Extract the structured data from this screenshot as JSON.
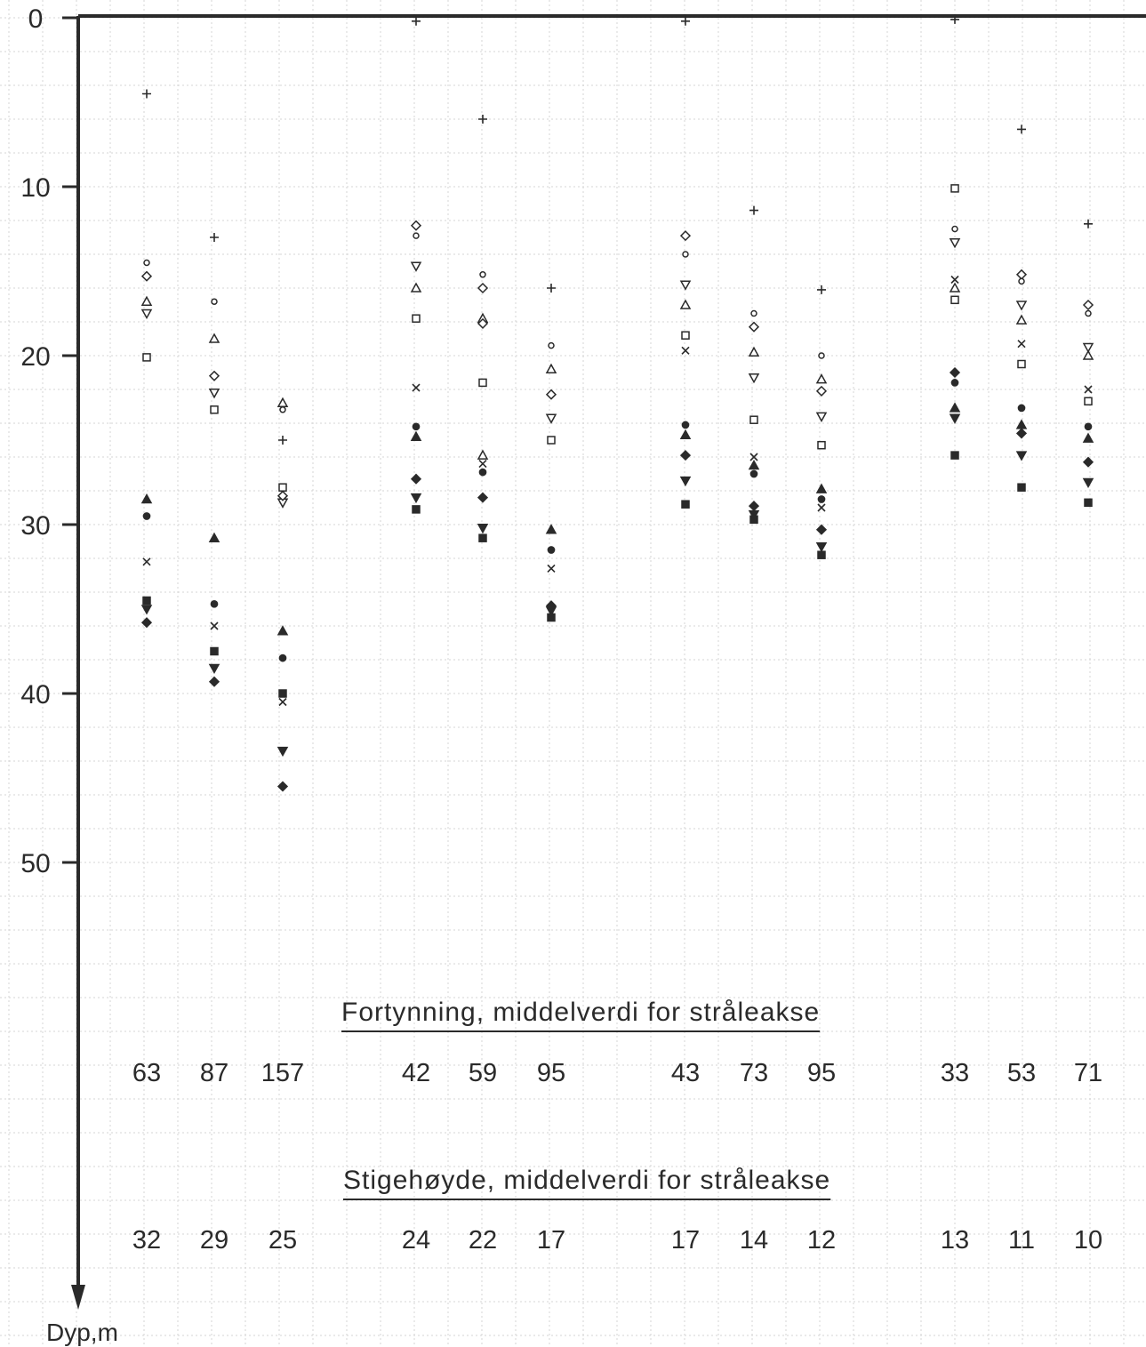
{
  "chart_data": {
    "type": "scatter",
    "ylabel": "Dyp,m",
    "ylim": [
      0,
      61
    ],
    "y_reversed": true,
    "y_ticks": [
      "0",
      "10",
      "20",
      "30",
      "40",
      "50"
    ],
    "grid": true,
    "colors": {
      "ink": "#2a2a2a",
      "grid": "#d4d4d4"
    },
    "series_markers": [
      "+",
      "o",
      "diamond",
      "triangle-up",
      "triangle-down",
      "square",
      "x",
      "filled-circle",
      "filled-triangle-up",
      "filled-diamond",
      "filled-triangle-down",
      "filled-square"
    ],
    "columns": [
      {
        "group": 1,
        "points": [
          [
            "+",
            4.5
          ],
          [
            "o",
            14.5
          ],
          [
            "diamond",
            15.3
          ],
          [
            "triangle-up",
            16.8
          ],
          [
            "triangle-down",
            17.5
          ],
          [
            "square",
            20.1
          ],
          [
            "filled-triangle-up",
            28.5
          ],
          [
            "filled-circle",
            29.5
          ],
          [
            "x",
            32.2
          ],
          [
            "filled-square",
            34.5
          ],
          [
            "filled-triangle-down",
            35.0
          ],
          [
            "filled-diamond",
            35.8
          ]
        ]
      },
      {
        "group": 1,
        "points": [
          [
            "+",
            13.0
          ],
          [
            "o",
            16.8
          ],
          [
            "triangle-up",
            19.0
          ],
          [
            "diamond",
            21.2
          ],
          [
            "triangle-down",
            22.2
          ],
          [
            "square",
            23.2
          ],
          [
            "filled-triangle-up",
            30.8
          ],
          [
            "filled-circle",
            34.7
          ],
          [
            "x",
            36.0
          ],
          [
            "filled-square",
            37.5
          ],
          [
            "filled-triangle-down",
            38.5
          ],
          [
            "filled-diamond",
            39.3
          ]
        ]
      },
      {
        "group": 1,
        "points": [
          [
            "triangle-up",
            22.8
          ],
          [
            "o",
            23.2
          ],
          [
            "+",
            25.0
          ],
          [
            "square",
            27.8
          ],
          [
            "triangle-down",
            28.7
          ],
          [
            "diamond",
            28.3
          ],
          [
            "filled-triangle-up",
            36.3
          ],
          [
            "filled-circle",
            37.9
          ],
          [
            "filled-square",
            40.0
          ],
          [
            "x",
            40.5
          ],
          [
            "filled-triangle-down",
            43.4
          ],
          [
            "filled-diamond",
            45.5
          ]
        ]
      },
      {
        "group": 2,
        "points": [
          [
            "+",
            0.2
          ],
          [
            "diamond",
            12.3
          ],
          [
            "o",
            12.9
          ],
          [
            "triangle-down",
            14.7
          ],
          [
            "triangle-up",
            16.0
          ],
          [
            "square",
            17.8
          ],
          [
            "x",
            21.9
          ],
          [
            "filled-circle",
            24.2
          ],
          [
            "filled-triangle-up",
            24.8
          ],
          [
            "filled-diamond",
            27.3
          ],
          [
            "filled-triangle-down",
            28.4
          ],
          [
            "filled-square",
            29.1
          ]
        ]
      },
      {
        "group": 2,
        "points": [
          [
            "+",
            6.0
          ],
          [
            "o",
            15.2
          ],
          [
            "diamond",
            16.0
          ],
          [
            "triangle-up",
            17.8
          ],
          [
            "diamond",
            18.1
          ],
          [
            "square",
            21.6
          ],
          [
            "triangle-up",
            25.9
          ],
          [
            "x",
            26.4
          ],
          [
            "filled-circle",
            26.9
          ],
          [
            "filled-diamond",
            28.4
          ],
          [
            "filled-triangle-down",
            30.2
          ],
          [
            "filled-square",
            30.8
          ]
        ]
      },
      {
        "group": 2,
        "points": [
          [
            "+",
            16.0
          ],
          [
            "o",
            19.4
          ],
          [
            "triangle-up",
            20.8
          ],
          [
            "diamond",
            22.3
          ],
          [
            "triangle-down",
            23.7
          ],
          [
            "square",
            25.0
          ],
          [
            "filled-triangle-up",
            30.3
          ],
          [
            "filled-circle",
            31.5
          ],
          [
            "x",
            32.6
          ],
          [
            "filled-diamond",
            34.8
          ],
          [
            "filled-triangle-down",
            35.1
          ],
          [
            "filled-square",
            35.5
          ]
        ]
      },
      {
        "group": 3,
        "points": [
          [
            "+",
            0.2
          ],
          [
            "diamond",
            12.9
          ],
          [
            "o",
            14.0
          ],
          [
            "triangle-down",
            15.8
          ],
          [
            "triangle-up",
            17.0
          ],
          [
            "square",
            18.8
          ],
          [
            "x",
            19.7
          ],
          [
            "filled-circle",
            24.1
          ],
          [
            "filled-triangle-up",
            24.7
          ],
          [
            "filled-diamond",
            25.9
          ],
          [
            "filled-triangle-down",
            27.4
          ],
          [
            "filled-square",
            28.8
          ]
        ]
      },
      {
        "group": 3,
        "points": [
          [
            "+",
            11.4
          ],
          [
            "o",
            17.5
          ],
          [
            "diamond",
            18.3
          ],
          [
            "triangle-up",
            19.8
          ],
          [
            "triangle-down",
            21.3
          ],
          [
            "square",
            23.8
          ],
          [
            "x",
            26.0
          ],
          [
            "filled-triangle-up",
            26.5
          ],
          [
            "filled-circle",
            27.0
          ],
          [
            "filled-diamond",
            28.9
          ],
          [
            "filled-triangle-down",
            29.4
          ],
          [
            "filled-square",
            29.7
          ]
        ]
      },
      {
        "group": 3,
        "points": [
          [
            "+",
            16.1
          ],
          [
            "o",
            20.0
          ],
          [
            "triangle-up",
            21.4
          ],
          [
            "diamond",
            22.1
          ],
          [
            "triangle-down",
            23.6
          ],
          [
            "square",
            25.3
          ],
          [
            "filled-triangle-up",
            27.9
          ],
          [
            "filled-circle",
            28.5
          ],
          [
            "x",
            29.0
          ],
          [
            "filled-diamond",
            30.3
          ],
          [
            "filled-triangle-down",
            31.3
          ],
          [
            "filled-square",
            31.8
          ]
        ]
      },
      {
        "group": 4,
        "points": [
          [
            "+",
            0.1
          ],
          [
            "square",
            10.1
          ],
          [
            "o",
            12.5
          ],
          [
            "triangle-down",
            13.3
          ],
          [
            "x",
            15.5
          ],
          [
            "triangle-up",
            16.0
          ],
          [
            "square",
            16.7
          ],
          [
            "filled-diamond",
            21.0
          ],
          [
            "filled-circle",
            21.6
          ],
          [
            "filled-triangle-up",
            23.1
          ],
          [
            "filled-triangle-down",
            23.7
          ],
          [
            "filled-square",
            25.9
          ]
        ]
      },
      {
        "group": 4,
        "points": [
          [
            "+",
            6.6
          ],
          [
            "diamond",
            15.2
          ],
          [
            "o",
            15.6
          ],
          [
            "triangle-down",
            17.0
          ],
          [
            "triangle-up",
            17.9
          ],
          [
            "x",
            19.3
          ],
          [
            "square",
            20.5
          ],
          [
            "filled-circle",
            23.1
          ],
          [
            "filled-triangle-up",
            24.1
          ],
          [
            "filled-diamond",
            24.6
          ],
          [
            "filled-triangle-down",
            25.9
          ],
          [
            "filled-square",
            27.8
          ]
        ]
      },
      {
        "group": 4,
        "points": [
          [
            "+",
            12.2
          ],
          [
            "diamond",
            17.0
          ],
          [
            "o",
            17.5
          ],
          [
            "triangle-down",
            19.5
          ],
          [
            "triangle-up",
            20.0
          ],
          [
            "x",
            22.0
          ],
          [
            "square",
            22.7
          ],
          [
            "filled-circle",
            24.2
          ],
          [
            "filled-triangle-up",
            24.9
          ],
          [
            "filled-diamond",
            26.3
          ],
          [
            "filled-triangle-down",
            27.5
          ],
          [
            "filled-square",
            28.7
          ]
        ]
      }
    ],
    "table_rows": [
      {
        "title": "Fortynning, middelverdi for stråleakse",
        "values": [
          "63",
          "87",
          "157",
          "42",
          "59",
          "95",
          "43",
          "73",
          "95",
          "33",
          "53",
          "71"
        ]
      },
      {
        "title": "Stigehøyde, middelverdi for stråleakse",
        "values": [
          "32",
          "29",
          "25",
          "24",
          "22",
          "17",
          "17",
          "14",
          "12",
          "13",
          "11",
          "10"
        ]
      }
    ]
  }
}
